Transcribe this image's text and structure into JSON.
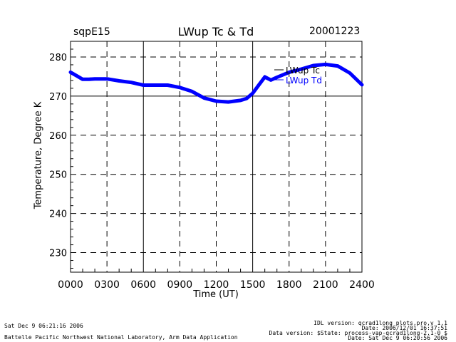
{
  "header": {
    "station": "sqpE15",
    "title": "LWup Tc & Td",
    "date": "20001223"
  },
  "footer": {
    "run_date": "Sat Dec  9 06:21:16 2006",
    "lab": "Battelle Pacific Northwest National Laboratory, Arm Data Application",
    "idl_version": "IDL version: qcrad1long_plots.pro,v 1.1",
    "idl_date": "Date: 2006/12/01 16:37:51",
    "data_version": "Data version: $State: process-vap-qcrad1long-2.1-0 $",
    "data_date": "Date: Sat Dec  9 06:20:56 2006"
  },
  "chart_data": {
    "type": "line",
    "title": "LWup Tc & Td",
    "xlabel": "Time (UT)",
    "ylabel": "Temperature, Degree K",
    "xlim": [
      0,
      2400
    ],
    "ylim": [
      225,
      284
    ],
    "x_ticks": [
      0,
      300,
      600,
      900,
      1200,
      1500,
      1800,
      2100,
      2400
    ],
    "x_tick_labels": [
      "0000",
      "0300",
      "0600",
      "0900",
      "1200",
      "1500",
      "1800",
      "2100",
      "2400"
    ],
    "y_ticks": [
      230,
      240,
      250,
      260,
      270,
      280
    ],
    "y_tick_labels": [
      "230",
      "240",
      "250",
      "260",
      "270",
      "280"
    ],
    "grid": true,
    "legend_position": "top-right",
    "x": [
      0,
      50,
      100,
      150,
      200,
      300,
      400,
      500,
      600,
      700,
      800,
      900,
      1000,
      1100,
      1200,
      1300,
      1400,
      1450,
      1500,
      1550,
      1600,
      1650,
      1700,
      1800,
      1900,
      2000,
      2100,
      2200,
      2300,
      2400
    ],
    "series": [
      {
        "name": "LWup Tc",
        "color": "#000000",
        "values": [
          276.3,
          275.4,
          274.5,
          274.5,
          274.6,
          274.5,
          274.0,
          273.6,
          272.9,
          272.9,
          272.9,
          272.4,
          271.4,
          269.6,
          268.8,
          268.7,
          269.1,
          269.6,
          270.9,
          273.0,
          275.2,
          274.3,
          275.0,
          276.3,
          277.1,
          278.0,
          278.3,
          277.9,
          276.1,
          273.1
        ]
      },
      {
        "name": "LWup Td",
        "color": "#0000ff",
        "values": [
          276.1,
          275.2,
          274.3,
          274.3,
          274.4,
          274.4,
          273.9,
          273.5,
          272.8,
          272.8,
          272.8,
          272.2,
          271.2,
          269.5,
          268.7,
          268.5,
          268.9,
          269.4,
          270.7,
          272.8,
          274.9,
          274.1,
          274.8,
          276.1,
          276.9,
          277.8,
          278.1,
          277.7,
          275.9,
          272.9
        ]
      }
    ]
  }
}
